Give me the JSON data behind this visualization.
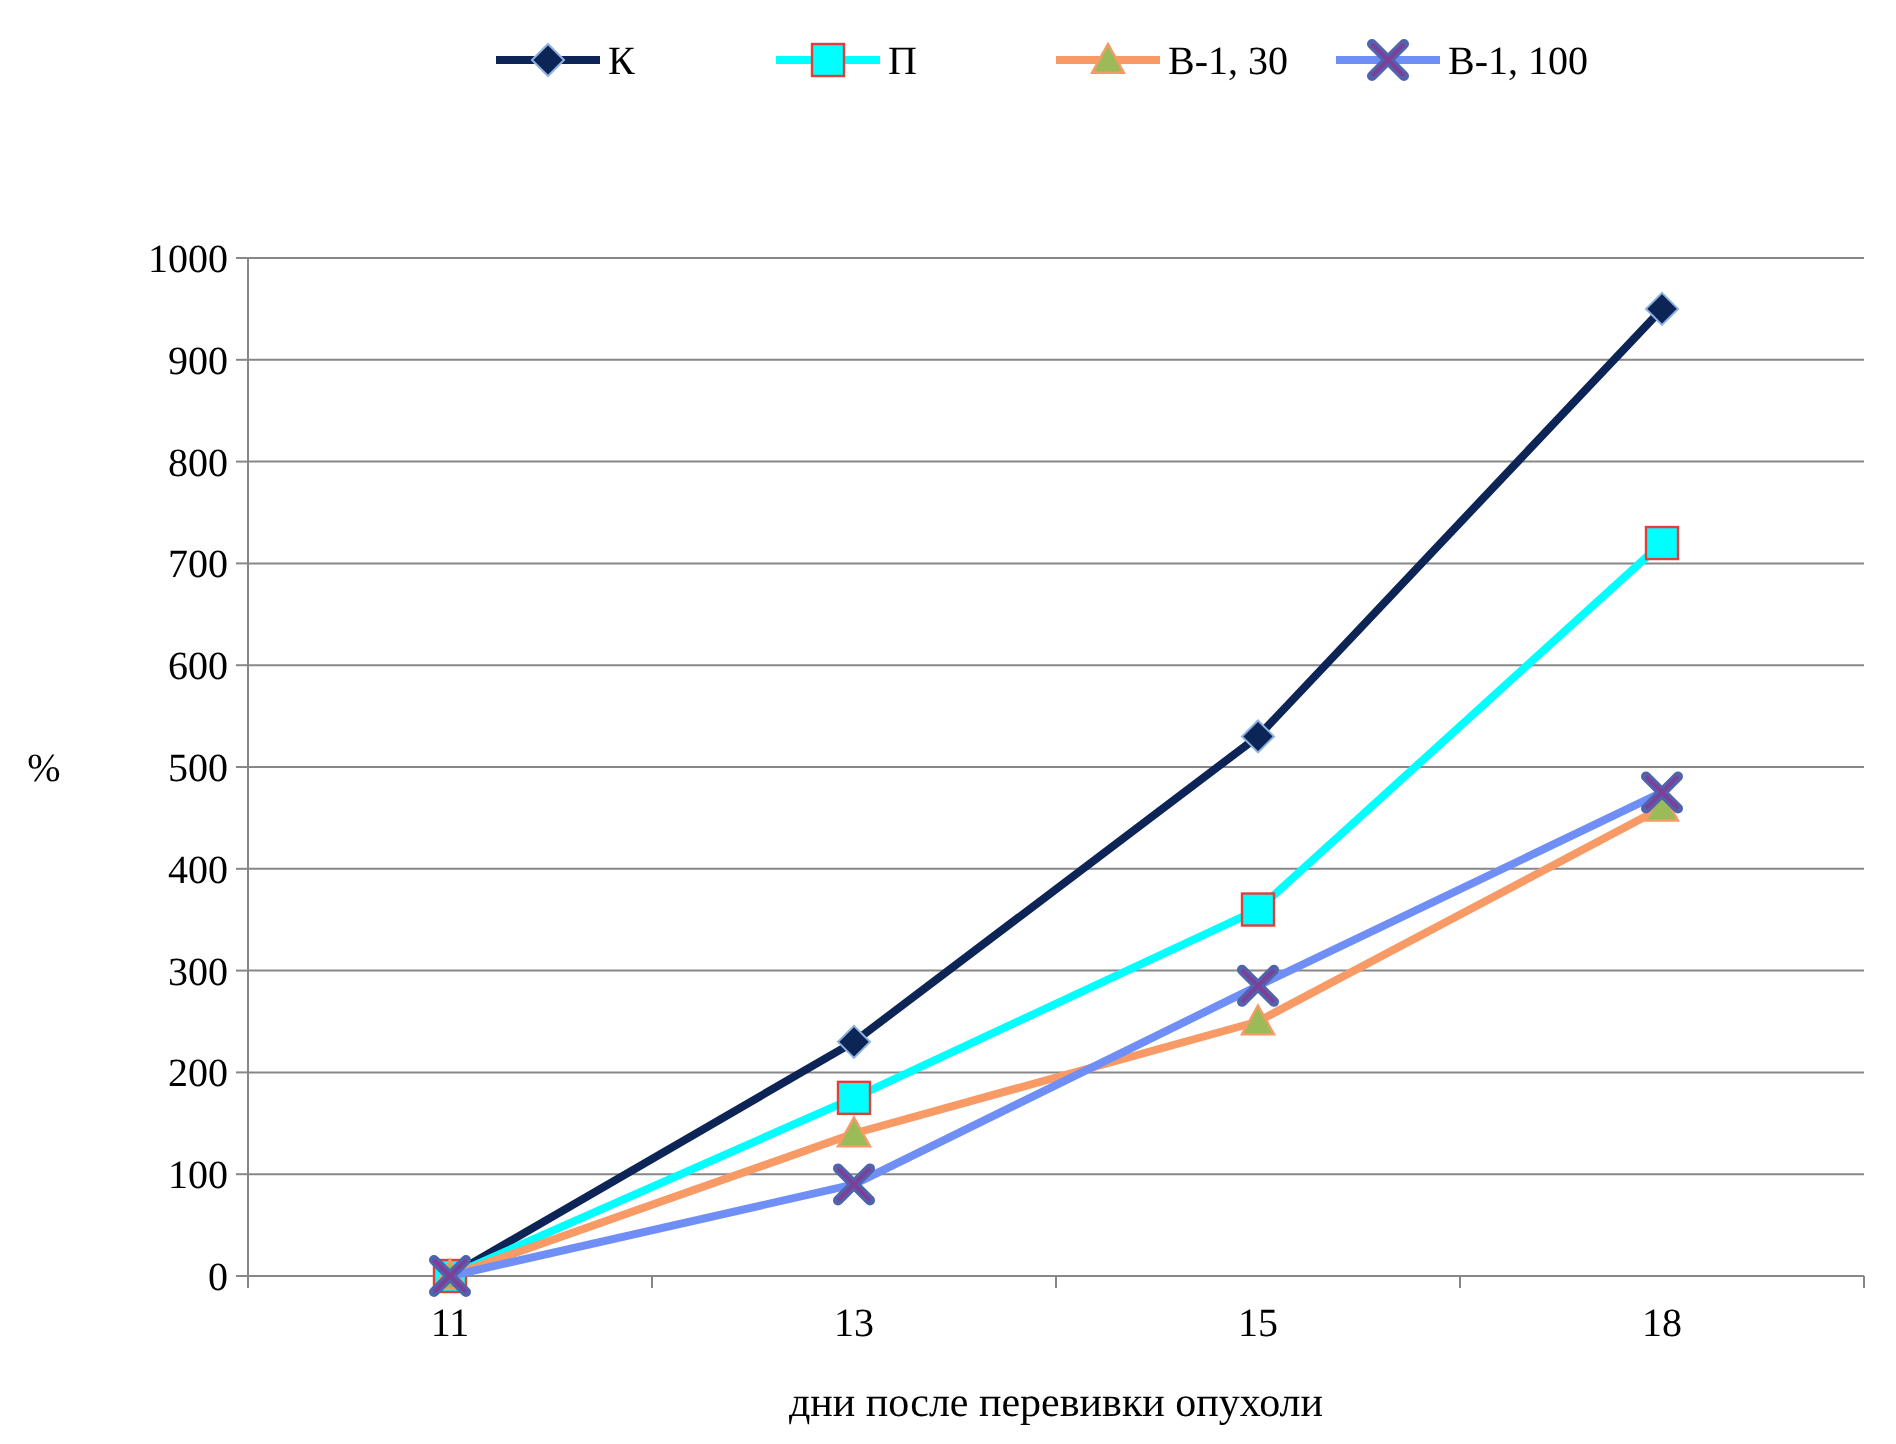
{
  "chart_data": {
    "type": "line",
    "xlabel": "дни после перевивки опухоли",
    "ylabel": "%",
    "categories": [
      "11",
      "13",
      "15",
      "18"
    ],
    "ylim": [
      0,
      1000
    ],
    "yticks": [
      0,
      100,
      200,
      300,
      400,
      500,
      600,
      700,
      800,
      900,
      1000
    ],
    "grid": "y",
    "legend": "top",
    "series": [
      {
        "name": "К",
        "color": "#0d2456",
        "marker": "diamond",
        "values": [
          0,
          230,
          530,
          950
        ]
      },
      {
        "name": "П",
        "color": "#00ffff",
        "marker": "square",
        "values": [
          0,
          175,
          360,
          720
        ]
      },
      {
        "name": "В-1, 30",
        "color": "#f79a66",
        "marker": "triangle",
        "values": [
          0,
          140,
          250,
          460
        ]
      },
      {
        "name": "В-1, 100",
        "color": "#6f8ff7",
        "marker": "cross",
        "values": [
          0,
          90,
          285,
          475
        ]
      }
    ]
  }
}
